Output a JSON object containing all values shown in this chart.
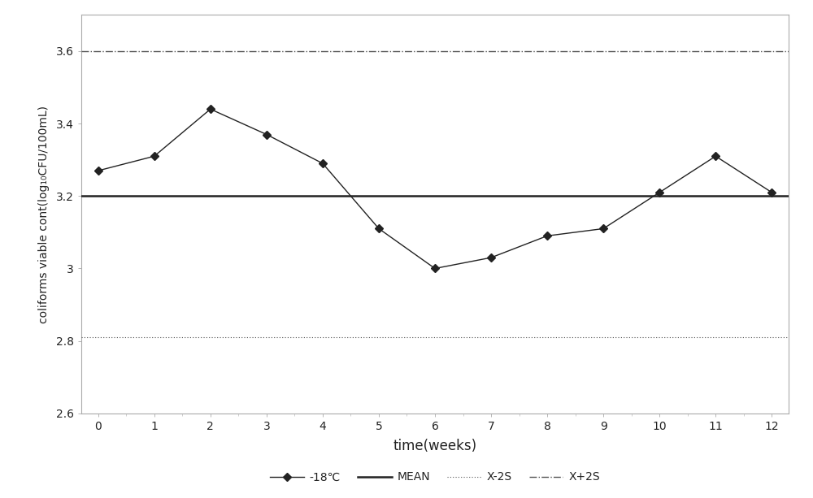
{
  "x": [
    0,
    1,
    2,
    3,
    4,
    5,
    6,
    7,
    8,
    9,
    10,
    11,
    12
  ],
  "y_data": [
    3.27,
    3.31,
    3.44,
    3.37,
    3.29,
    3.11,
    3.0,
    3.03,
    3.09,
    3.11,
    3.21,
    3.31,
    3.21
  ],
  "mean": 3.2,
  "x_minus_2s": 2.81,
  "x_plus_2s": 3.6,
  "ylim": [
    2.6,
    3.7
  ],
  "xlim": [
    -0.3,
    12.3
  ],
  "ytick_values": [
    2.6,
    2.8,
    3.0,
    3.2,
    3.4,
    3.6
  ],
  "ytick_labels": [
    "2.6",
    "2.8",
    "3",
    "3.2",
    "3.4",
    "3.6"
  ],
  "xticks": [
    0,
    1,
    2,
    3,
    4,
    5,
    6,
    7,
    8,
    9,
    10,
    11,
    12
  ],
  "xlabel": "time(weeks)",
  "ylabel": "coliforms viable cont(log₁₀CFU/100mL)",
  "data_color": "#222222",
  "mean_color": "#222222",
  "x2s_color": "#555555",
  "xp2s_color": "#555555",
  "spine_color": "#aaaaaa",
  "tick_color": "#aaaaaa",
  "legend_labels": [
    "-18℃",
    "MEAN",
    "X-2S",
    "X+2S"
  ],
  "figsize": [
    10.0,
    6.13
  ],
  "dpi": 100
}
